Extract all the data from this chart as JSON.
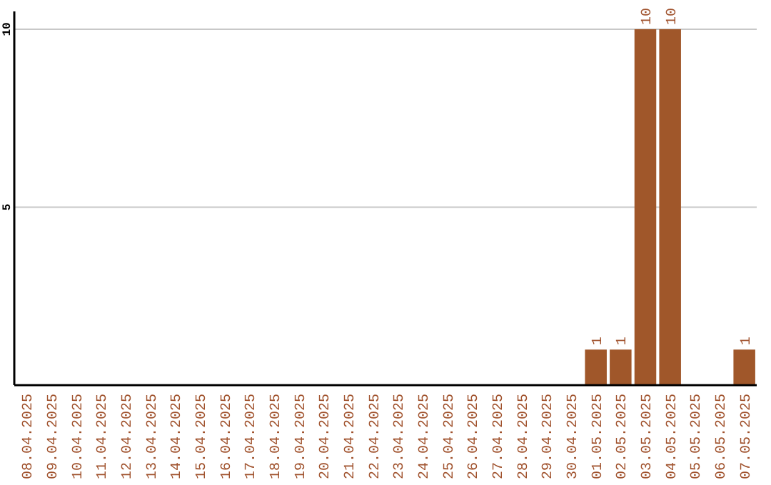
{
  "chart_data": {
    "type": "bar",
    "categories": [
      "08.04.2025",
      "09.04.2025",
      "10.04.2025",
      "11.04.2025",
      "12.04.2025",
      "13.04.2025",
      "14.04.2025",
      "15.04.2025",
      "16.04.2025",
      "17.04.2025",
      "18.04.2025",
      "19.04.2025",
      "20.04.2025",
      "21.04.2025",
      "22.04.2025",
      "23.04.2025",
      "24.04.2025",
      "25.04.2025",
      "26.04.2025",
      "27.04.2025",
      "28.04.2025",
      "29.04.2025",
      "30.04.2025",
      "01.05.2025",
      "02.05.2025",
      "03.05.2025",
      "04.05.2025",
      "05.05.2025",
      "06.05.2025",
      "07.05.2025"
    ],
    "values": [
      0,
      0,
      0,
      0,
      0,
      0,
      0,
      0,
      0,
      0,
      0,
      0,
      0,
      0,
      0,
      0,
      0,
      0,
      0,
      0,
      0,
      0,
      0,
      1,
      1,
      10,
      10,
      0,
      0,
      1
    ],
    "value_labels": [
      null,
      null,
      null,
      null,
      null,
      null,
      null,
      null,
      null,
      null,
      null,
      null,
      null,
      null,
      null,
      null,
      null,
      null,
      null,
      null,
      null,
      null,
      null,
      "1",
      "1",
      "10",
      "10",
      null,
      null,
      "1"
    ],
    "color": "#a0572a",
    "ylim": [
      0,
      10.5
    ],
    "yticks": [
      5,
      10
    ],
    "grid": "y"
  }
}
